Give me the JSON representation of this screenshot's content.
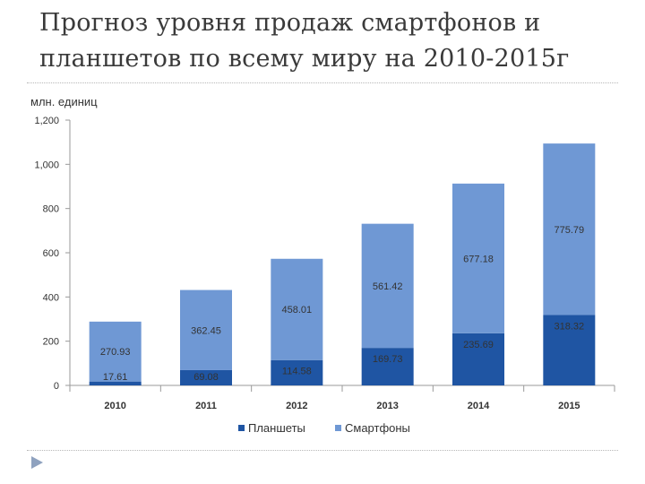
{
  "slide": {
    "title_line1": "Прогноз уровня продаж смартфонов и",
    "title_line2": "планшетов по всему миру на 2010-2015г"
  },
  "colors": {
    "tablets": "#1f55a3",
    "smartphones": "#6f98d4",
    "axis": "#9a9a9a",
    "text": "#333333"
  },
  "chart_data": {
    "type": "bar",
    "stacked": true,
    "title": "",
    "ylabel": "млн. единиц",
    "xlabel": "",
    "categories": [
      "2010",
      "2011",
      "2012",
      "2013",
      "2014",
      "2015"
    ],
    "y_ticks": [
      "0",
      "200",
      "400",
      "600",
      "800",
      "1,000",
      "1,200"
    ],
    "ylim": [
      0,
      1200
    ],
    "series": [
      {
        "name": "Планшеты",
        "values": [
          17.61,
          69.08,
          114.58,
          169.73,
          235.69,
          318.32
        ],
        "labels": [
          "17.61",
          "69.08",
          "114.58",
          "169.73",
          "235.69",
          "318.32"
        ]
      },
      {
        "name": "Смартфоны",
        "values": [
          270.93,
          362.45,
          458.01,
          561.42,
          677.18,
          775.79
        ],
        "labels": [
          "270.93",
          "362.45",
          "458.01",
          "561.42",
          "677.18",
          "775.79"
        ]
      }
    ],
    "legend": "bottom"
  }
}
